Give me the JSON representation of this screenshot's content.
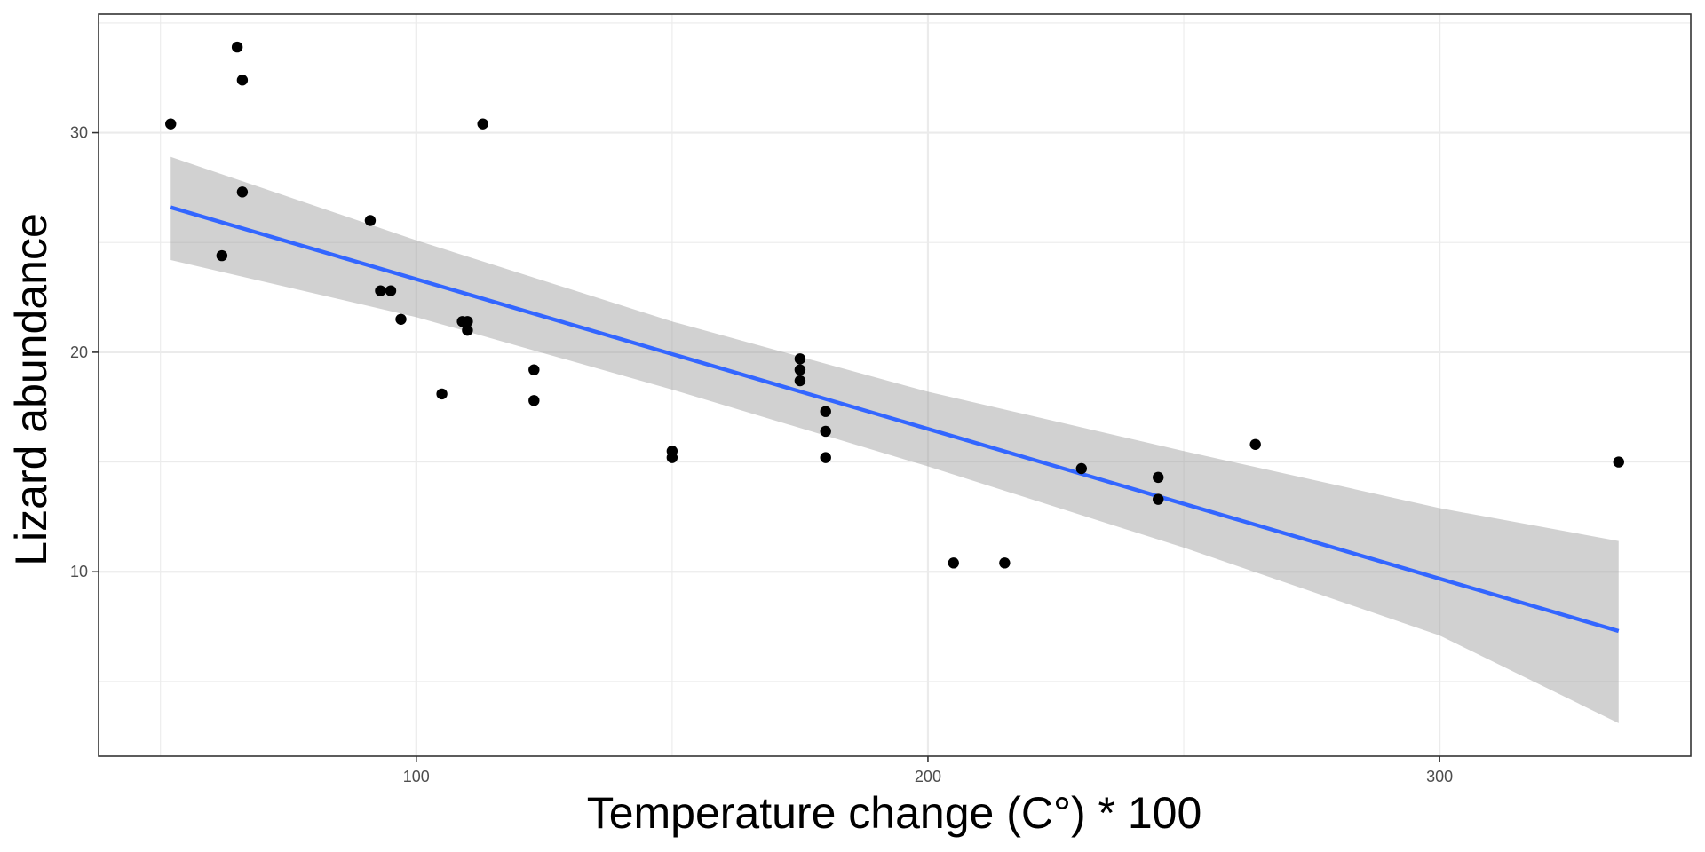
{
  "chart_data": {
    "type": "scatter",
    "title": "",
    "xlabel": "Temperature change (C°) * 100",
    "ylabel": "Lizard abundance",
    "xlim": [
      37.9,
      349.1
    ],
    "ylim": [
      1.6,
      35.4
    ],
    "x_ticks": [
      100,
      200,
      300
    ],
    "x_tick_labels": [
      "100",
      "200",
      "300"
    ],
    "x_minor_ticks": [
      50,
      150,
      250
    ],
    "y_ticks": [
      10,
      20,
      30
    ],
    "y_tick_labels": [
      "10",
      "20",
      "30"
    ],
    "y_minor_ticks": [
      5,
      15,
      25,
      35
    ],
    "grid": true,
    "legend": "none",
    "theme": "bw",
    "colors": {
      "points": "#000000",
      "fit_line": "#3366ff",
      "ci_band": "#999999",
      "grid": "#ebebeb",
      "panel_border": "#333333"
    },
    "points": [
      {
        "x": 52,
        "y": 30.4
      },
      {
        "x": 65,
        "y": 33.9
      },
      {
        "x": 66,
        "y": 32.4
      },
      {
        "x": 66,
        "y": 27.3
      },
      {
        "x": 62,
        "y": 24.4
      },
      {
        "x": 91,
        "y": 26.0
      },
      {
        "x": 93,
        "y": 22.8
      },
      {
        "x": 95,
        "y": 22.8
      },
      {
        "x": 97,
        "y": 21.5
      },
      {
        "x": 109,
        "y": 21.4
      },
      {
        "x": 110,
        "y": 21.4
      },
      {
        "x": 110,
        "y": 21.0
      },
      {
        "x": 113,
        "y": 30.4
      },
      {
        "x": 105,
        "y": 18.1
      },
      {
        "x": 123,
        "y": 19.2
      },
      {
        "x": 123,
        "y": 17.8
      },
      {
        "x": 150,
        "y": 15.5
      },
      {
        "x": 150,
        "y": 15.2
      },
      {
        "x": 175,
        "y": 19.7
      },
      {
        "x": 175,
        "y": 19.2
      },
      {
        "x": 175,
        "y": 18.7
      },
      {
        "x": 180,
        "y": 17.3
      },
      {
        "x": 180,
        "y": 16.4
      },
      {
        "x": 180,
        "y": 15.2
      },
      {
        "x": 205,
        "y": 10.4
      },
      {
        "x": 215,
        "y": 10.4
      },
      {
        "x": 230,
        "y": 14.7
      },
      {
        "x": 245,
        "y": 14.3
      },
      {
        "x": 245,
        "y": 13.3
      },
      {
        "x": 264,
        "y": 15.8
      },
      {
        "x": 335,
        "y": 15.0
      }
    ],
    "fit": {
      "method": "lm",
      "x": [
        52,
        335
      ],
      "y": [
        26.6,
        7.3
      ]
    },
    "ci_band": {
      "x": [
        52,
        100,
        150,
        200,
        250,
        300,
        335
      ],
      "lower": [
        24.2,
        21.6,
        18.3,
        14.8,
        11.1,
        7.1,
        3.1
      ],
      "upper": [
        28.9,
        25.1,
        21.4,
        18.2,
        15.5,
        12.9,
        11.4
      ]
    }
  }
}
